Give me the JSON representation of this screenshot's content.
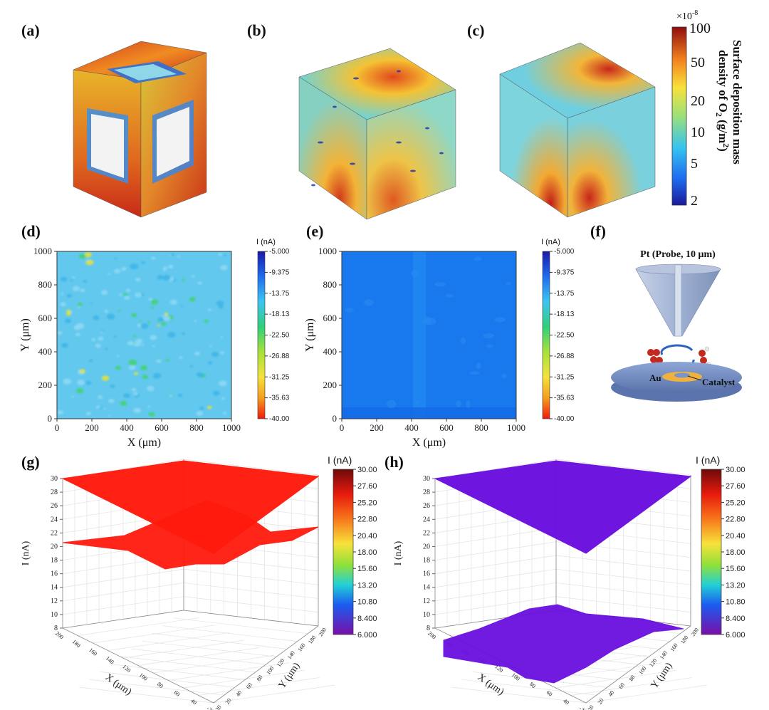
{
  "panels": {
    "a": "(a)",
    "b": "(b)",
    "c": "(c)",
    "d": "(d)",
    "e": "(e)",
    "f": "(f)",
    "g": "(g)",
    "h": "(h)"
  },
  "colorbar_abc": {
    "multiplier": "×10",
    "exponent": "-8",
    "ticks": [
      "100",
      "50",
      "20",
      "10",
      "5",
      "2"
    ],
    "title_line1": "Surface deposition mass",
    "title_line2": "density of O",
    "title_sub": "2",
    "title_line2b": " (g/m",
    "title_sup": "2",
    "title_line2c": ")"
  },
  "schematic_f": {
    "probe_label": "Pt (Probe, 10 μm)",
    "au_label": "Au",
    "catalyst_label": "Catalyst"
  },
  "colors": {
    "red": "#ff1a0d",
    "purple": "#6a0fe0",
    "blue_map": "#1678ef",
    "cyan_map": "#4fc3f0"
  },
  "chart_data": [
    {
      "id": "d",
      "type": "heatmap",
      "xlabel": "X (μm)",
      "ylabel": "Y (μm)",
      "xlim": [
        0,
        1000
      ],
      "ylim": [
        0,
        1000
      ],
      "x_ticks": [
        "0",
        "200",
        "400",
        "600",
        "800",
        "1000"
      ],
      "y_ticks": [
        "0",
        "200",
        "400",
        "600",
        "800",
        "1000"
      ],
      "colorbar_title": "I (nA)",
      "colorbar_ticks": [
        "-5.000",
        "-9.375",
        "-13.75",
        "-18.13",
        "-22.50",
        "-26.88",
        "-31.25",
        "-35.63",
        "-40.00"
      ],
      "dominant_current_nA": -13.75
    },
    {
      "id": "e",
      "type": "heatmap",
      "xlabel": "X (μm)",
      "ylabel": "Y (μm)",
      "xlim": [
        0,
        1000
      ],
      "ylim": [
        0,
        1000
      ],
      "x_ticks": [
        "0",
        "200",
        "400",
        "600",
        "800",
        "1000"
      ],
      "y_ticks": [
        "0",
        "200",
        "400",
        "600",
        "800",
        "1000"
      ],
      "colorbar_title": "I (nA)",
      "colorbar_ticks": [
        "-5.000",
        "-9.375",
        "-13.75",
        "-18.13",
        "-22.50",
        "-26.88",
        "-31.25",
        "-35.63",
        "-40.00"
      ],
      "dominant_current_nA": -9.375
    },
    {
      "id": "g",
      "type": "surface3d",
      "zlabel": "I (nA)",
      "xlabel": "X (μm)",
      "ylabel": "Y (μm)",
      "zlim": [
        8,
        30
      ],
      "z_ticks": [
        "8",
        "10",
        "12",
        "14",
        "16",
        "18",
        "20",
        "22",
        "24",
        "26",
        "28",
        "30"
      ],
      "x_ticks": [
        "-20",
        "40",
        "60",
        "80",
        "100",
        "120",
        "140",
        "160",
        "180",
        "200"
      ],
      "y_ticks": [
        "-20",
        "20",
        "40",
        "60",
        "80",
        "100",
        "120",
        "140",
        "160",
        "180",
        "200"
      ],
      "colorbar_title": "I (nA)",
      "colorbar_ticks": [
        "30.00",
        "27.60",
        "25.20",
        "22.80",
        "20.40",
        "18.00",
        "15.60",
        "13.20",
        "10.80",
        "8.400",
        "6.000"
      ],
      "series": [
        {
          "level_nA": 30
        },
        {
          "level_nA": 22.5
        }
      ]
    },
    {
      "id": "h",
      "type": "surface3d",
      "zlabel": "I (nA)",
      "xlabel": "X (μm)",
      "ylabel": "Y (μm)",
      "zlim": [
        8,
        30
      ],
      "z_ticks": [
        "8",
        "10",
        "12",
        "14",
        "16",
        "18",
        "20",
        "22",
        "24",
        "26",
        "28",
        "30"
      ],
      "x_ticks": [
        "-20",
        "40",
        "60",
        "80",
        "100",
        "120",
        "140",
        "160",
        "180",
        "200"
      ],
      "y_ticks": [
        "-20",
        "20",
        "40",
        "60",
        "80",
        "100",
        "120",
        "140",
        "160",
        "180",
        "200"
      ],
      "colorbar_title": "I (nA)",
      "colorbar_ticks": [
        "30.00",
        "27.60",
        "25.20",
        "22.80",
        "20.40",
        "18.00",
        "15.60",
        "13.20",
        "10.80",
        "8.400",
        "6.000"
      ],
      "series": [
        {
          "level_nA": 30
        },
        {
          "level_nA": 8
        }
      ]
    }
  ]
}
